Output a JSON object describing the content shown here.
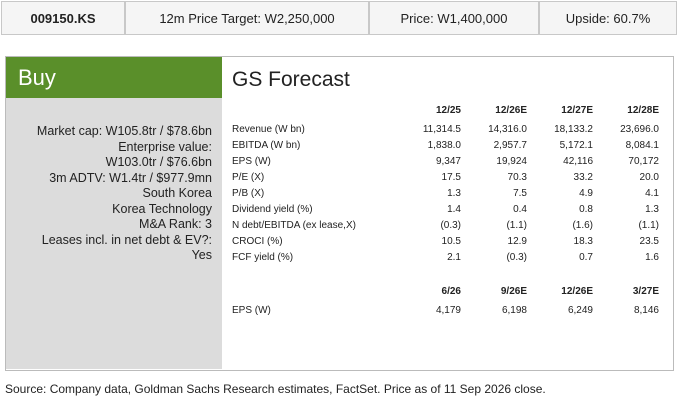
{
  "header": {
    "ticker": "009150.KS",
    "target": "12m Price Target: W2,250,000",
    "price": "Price: W1,400,000",
    "upside": "Upside: 60.7%"
  },
  "rating": "Buy",
  "details": [
    "Market cap: W105.8tr / $78.6bn",
    "Enterprise value:",
    "W103.0tr / $76.6bn",
    "3m ADTV: W1.4tr / $977.9mn",
    "South Korea",
    "Korea Technology",
    "M&A Rank: 3",
    "Leases incl. in net debt & EV?:",
    "Yes"
  ],
  "forecast": {
    "title": "GS Forecast",
    "annual": {
      "columns": [
        "12/25",
        "12/26E",
        "12/27E",
        "12/28E"
      ],
      "rows": [
        [
          "Revenue (W bn)",
          "11,314.5",
          "14,316.0",
          "18,133.2",
          "23,696.0"
        ],
        [
          "EBITDA (W bn)",
          "1,838.0",
          "2,957.7",
          "5,172.1",
          "8,084.1"
        ],
        [
          "EPS (W)",
          "9,347",
          "19,924",
          "42,116",
          "70,172"
        ],
        [
          "P/E (X)",
          "17.5",
          "70.3",
          "33.2",
          "20.0"
        ],
        [
          "P/B (X)",
          "1.3",
          "7.5",
          "4.9",
          "4.1"
        ],
        [
          "Dividend yield (%)",
          "1.4",
          "0.4",
          "0.8",
          "1.3"
        ],
        [
          "N debt/EBITDA (ex lease,X)",
          "(0.3)",
          "(1.1)",
          "(1.6)",
          "(1.1)"
        ],
        [
          "CROCI (%)",
          "10.5",
          "12.9",
          "18.3",
          "23.5"
        ],
        [
          "FCF yield (%)",
          "2.1",
          "(0.3)",
          "0.7",
          "1.6"
        ]
      ]
    },
    "quarterly": {
      "columns": [
        "6/26",
        "9/26E",
        "12/26E",
        "3/27E"
      ],
      "rows": [
        [
          "EPS (W)",
          "4,179",
          "6,198",
          "6,249",
          "8,146"
        ]
      ]
    }
  },
  "source": "Source: Company data, Goldman Sachs Research estimates, FactSet. Price as of 11 Sep 2026 close."
}
